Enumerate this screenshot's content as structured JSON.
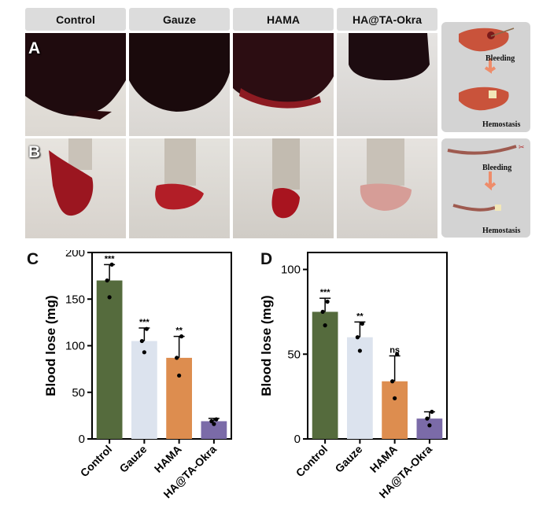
{
  "columns": [
    "Control",
    "Gauze",
    "HAMA",
    "HA@TA-Okra"
  ],
  "row_labels": [
    "A",
    "B"
  ],
  "schematic": {
    "liver": {
      "top": "Bleeding",
      "bottom": "Hemostasis"
    },
    "tail": {
      "top": "Bleeding",
      "bottom": "Hemostasis"
    }
  },
  "colors": {
    "control": "#556b3d",
    "gauze": "#dce3ee",
    "hama": "#dd8d4f",
    "okra": "#7b6ba8"
  },
  "chart_data": [
    {
      "panel": "C",
      "type": "bar",
      "categories": [
        "Control",
        "Gauze",
        "HAMA",
        "HA@TA-Okra"
      ],
      "values": [
        170,
        105,
        87,
        19
      ],
      "errors": [
        17,
        14,
        23,
        3
      ],
      "points": [
        [
          170,
          152,
          187
        ],
        [
          105,
          93,
          118
        ],
        [
          87,
          68,
          110
        ],
        [
          19,
          16,
          21
        ]
      ],
      "significance": [
        "***",
        "***",
        "**",
        ""
      ],
      "ylabel": "Blood lose (mg)",
      "ylim": [
        0,
        200
      ],
      "yticks": [
        0,
        50,
        100,
        150,
        200
      ]
    },
    {
      "panel": "D",
      "type": "bar",
      "categories": [
        "Control",
        "Gauze",
        "HAMA",
        "HA@TA-Okra"
      ],
      "values": [
        75,
        60,
        34,
        12
      ],
      "errors": [
        8,
        9,
        15,
        4
      ],
      "points": [
        [
          75,
          67,
          81
        ],
        [
          60,
          52,
          68
        ],
        [
          34,
          24,
          50
        ],
        [
          12,
          8,
          16
        ]
      ],
      "significance": [
        "***",
        "**",
        "ns",
        ""
      ],
      "ylabel": "Blood lose (mg)",
      "ylim": [
        0,
        110
      ],
      "yticks": [
        0,
        50,
        100
      ]
    }
  ]
}
